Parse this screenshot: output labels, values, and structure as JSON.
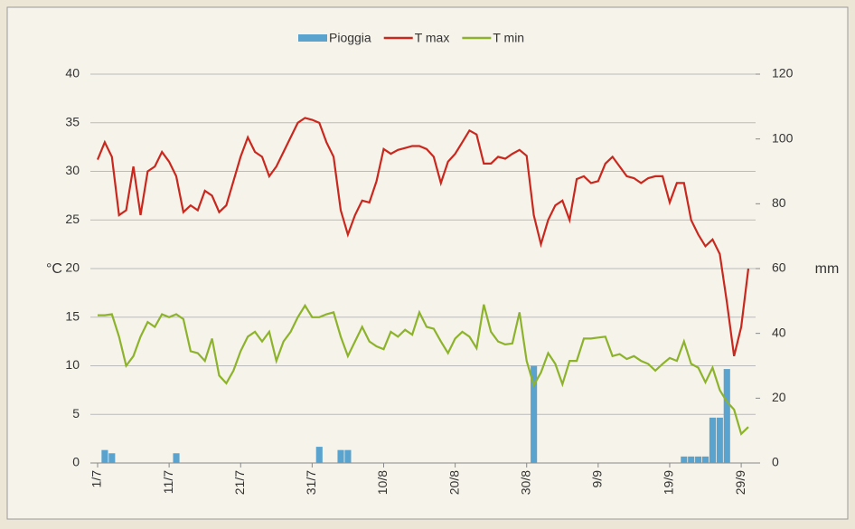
{
  "chart_data": {
    "type": "combo",
    "categories": [
      "1/7",
      null,
      null,
      null,
      null,
      null,
      null,
      null,
      null,
      null,
      "11/7",
      null,
      null,
      null,
      null,
      null,
      null,
      null,
      null,
      null,
      "21/7",
      null,
      null,
      null,
      null,
      null,
      null,
      null,
      null,
      null,
      "31/7",
      null,
      null,
      null,
      null,
      null,
      null,
      null,
      null,
      null,
      "10/8",
      null,
      null,
      null,
      null,
      null,
      null,
      null,
      null,
      null,
      "20/8",
      null,
      null,
      null,
      null,
      null,
      null,
      null,
      null,
      null,
      "30/8",
      null,
      null,
      null,
      null,
      null,
      null,
      null,
      null,
      null,
      "9/9",
      null,
      null,
      null,
      null,
      null,
      null,
      null,
      null,
      null,
      "19/9",
      null,
      null,
      null,
      null,
      null,
      null,
      null,
      null,
      null,
      "29/9",
      null
    ],
    "series": [
      {
        "name": "Pioggia",
        "kind": "bar",
        "axis": "y2",
        "color": "#5ba3cf",
        "values": [
          0,
          4,
          3,
          0,
          0,
          0,
          0,
          0,
          0,
          0,
          0,
          3,
          0,
          0,
          0,
          0,
          0,
          0,
          0,
          0,
          0,
          0,
          0,
          0,
          0,
          0,
          0,
          0,
          0,
          0,
          0,
          5,
          0,
          0,
          4,
          4,
          0,
          0,
          0,
          0,
          0,
          0,
          0,
          0,
          0,
          0,
          0,
          0,
          0,
          0,
          0,
          0,
          0,
          0,
          0,
          0,
          0,
          0,
          0,
          0,
          0,
          30,
          0,
          0,
          0,
          0,
          0,
          0,
          0,
          0,
          0,
          0,
          0,
          0,
          0,
          0,
          0,
          0,
          0,
          0,
          0,
          0,
          2,
          2,
          2,
          2,
          14,
          14,
          29,
          0,
          0,
          0
        ]
      },
      {
        "name": "T max",
        "kind": "line",
        "color": "#c8281e",
        "values": [
          31.2,
          33,
          31.5,
          25.5,
          26,
          30.5,
          25.5,
          30,
          30.5,
          32,
          31,
          29.5,
          25.8,
          26.5,
          26,
          28,
          27.5,
          25.8,
          26.5,
          29,
          31.5,
          33.5,
          32,
          31.5,
          29.5,
          30.5,
          32,
          33.5,
          35,
          35.5,
          35.3,
          35,
          33,
          31.5,
          26,
          23.5,
          25.5,
          27,
          26.8,
          29,
          32.3,
          31.8,
          32.2,
          32.4,
          32.6,
          32.6,
          32.3,
          31.5,
          28.8,
          31,
          31.8,
          33,
          34.2,
          33.8,
          30.8,
          30.8,
          31.5,
          31.3,
          31.8,
          32.2,
          31.6,
          25.5,
          22.5,
          25,
          26.5,
          27,
          25,
          29.2,
          29.5,
          28.8,
          29,
          30.8,
          31.5,
          30.5,
          29.5,
          29.3,
          28.8,
          29.3,
          29.5,
          29.5,
          26.8,
          28.8,
          28.8,
          25,
          23.5,
          22.3,
          23,
          21.5,
          16.5,
          11,
          14,
          20
        ]
      },
      {
        "name": "T min",
        "kind": "line",
        "color": "#8db32c",
        "values": [
          15.2,
          15.2,
          15.3,
          13,
          10,
          11,
          13,
          14.5,
          14,
          15.3,
          15,
          15.3,
          14.8,
          11.5,
          11.3,
          10.5,
          12.8,
          9,
          8.2,
          9.5,
          11.5,
          13,
          13.5,
          12.5,
          13.5,
          10.5,
          12.5,
          13.5,
          15,
          16.2,
          15,
          15,
          15.3,
          15.5,
          13,
          11,
          12.5,
          14,
          12.5,
          12,
          11.7,
          13.5,
          13,
          13.7,
          13.2,
          15.5,
          14,
          13.8,
          12.5,
          11.3,
          12.8,
          13.5,
          13,
          11.8,
          16.3,
          13.5,
          12.5,
          12.2,
          12.3,
          15.5,
          10.5,
          8,
          9.3,
          11.3,
          10.2,
          8.1,
          10.5,
          10.5,
          12.8,
          12.8,
          12.9,
          13,
          11,
          11.2,
          10.7,
          11,
          10.5,
          10.2,
          9.5,
          10.2,
          10.8,
          10.5,
          12.5,
          10.2,
          9.8,
          8.3,
          9.8,
          7.5,
          6.3,
          5.5,
          3,
          3.7
        ]
      }
    ],
    "y_label": "°C",
    "y2_label": "mm",
    "ylim": [
      0,
      40
    ],
    "yticks": [
      0,
      5,
      10,
      15,
      20,
      25,
      30,
      35,
      40
    ],
    "y2lim": [
      0,
      120
    ],
    "y2ticks": [
      0,
      20,
      40,
      60,
      80,
      100,
      120
    ],
    "grid": true,
    "legend": "top"
  }
}
